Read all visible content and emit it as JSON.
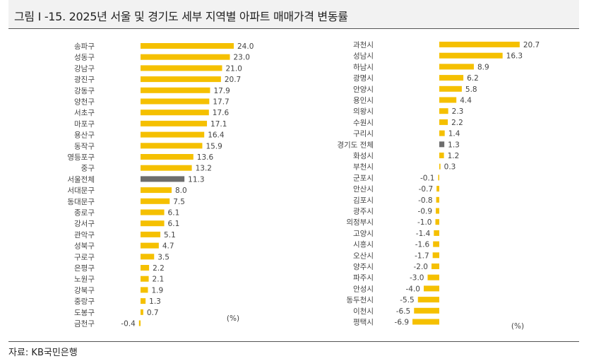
{
  "header": {
    "title": "그림 Ⅰ -15. 2025년 서울 및 경기도 세부 지역별 아파트 매매가격 변동률"
  },
  "footer": {
    "source": "자료: KB국민은행"
  },
  "colors": {
    "bar": "#f5c000",
    "highlight": "#6d6d6d"
  },
  "chart_data": [
    {
      "type": "bar",
      "orientation": "horizontal",
      "unit_label": "(%)",
      "highlight_category": "서울전체",
      "categories": [
        "송파구",
        "성동구",
        "강남구",
        "광진구",
        "강동구",
        "양천구",
        "서초구",
        "마포구",
        "용산구",
        "동작구",
        "영등포구",
        "중구",
        "서울전체",
        "서대문구",
        "동대문구",
        "종로구",
        "강서구",
        "관악구",
        "성북구",
        "구로구",
        "은평구",
        "노원구",
        "강북구",
        "중랑구",
        "도봉구",
        "금천구"
      ],
      "values": [
        24.0,
        23.0,
        21.0,
        20.7,
        17.9,
        17.7,
        17.6,
        17.1,
        16.4,
        15.9,
        13.6,
        13.2,
        11.3,
        8.0,
        7.5,
        6.1,
        6.1,
        5.1,
        4.7,
        3.5,
        2.2,
        2.1,
        1.9,
        1.3,
        0.7,
        -0.4
      ],
      "labels": [
        "24.0",
        "23.0",
        "21.0",
        "20.7",
        "17.9",
        "17.7",
        "17.6",
        "17.1",
        "16.4",
        "15.9",
        "13.6",
        "13.2",
        "11.3",
        "8.0",
        "7.5",
        "6.1",
        "6.1",
        "5.1",
        "4.7",
        "3.5",
        "2.2",
        "2.1",
        "1.9",
        "1.3",
        "0.7",
        "-0.4"
      ]
    },
    {
      "type": "bar",
      "orientation": "horizontal",
      "unit_label": "(%)",
      "highlight_category": "경기도 전체",
      "categories": [
        "과천시",
        "성남시",
        "하남시",
        "광명시",
        "안양시",
        "용인시",
        "의왕시",
        "수원시",
        "구리시",
        "경기도 전체",
        "화성시",
        "부천시",
        "군포시",
        "안산시",
        "김포시",
        "광주시",
        "의정부시",
        "고양시",
        "시흥시",
        "오산시",
        "양주시",
        "파주시",
        "안성시",
        "동두천시",
        "이천시",
        "평택시"
      ],
      "values": [
        20.7,
        16.3,
        8.9,
        6.2,
        5.8,
        4.4,
        2.3,
        2.2,
        1.4,
        1.3,
        1.2,
        0.3,
        -0.1,
        -0.7,
        -0.8,
        -0.9,
        -1.0,
        -1.4,
        -1.6,
        -1.7,
        -2.0,
        -3.0,
        -4.0,
        -5.5,
        -6.5,
        -6.9
      ],
      "labels": [
        "20.7",
        "16.3",
        "8.9",
        "6.2",
        "5.8",
        "4.4",
        "2.3",
        "2.2",
        "1.4",
        "1.3",
        "1.2",
        "0.3",
        "-0.1",
        "-0.7",
        "-0.8",
        "-0.9",
        "-1.0",
        "-1.4",
        "-1.6",
        "-1.7",
        "-2.0",
        "-3.0",
        "-4.0",
        "-5.5",
        "-6.5",
        "-6.9"
      ]
    }
  ]
}
